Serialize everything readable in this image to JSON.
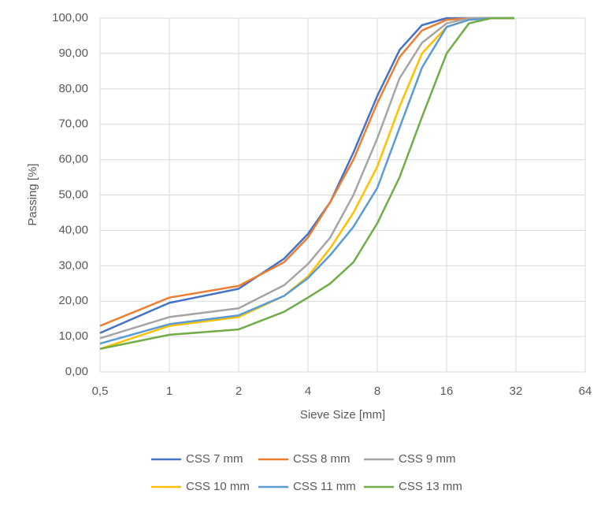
{
  "chart_data": {
    "type": "line",
    "x_label": "Sieve Size [mm]",
    "y_label": "Passing [%]",
    "x_scale": "log2",
    "grid": true,
    "legend": "bottom",
    "x": [
      0.5,
      1,
      2,
      3.15,
      4,
      5,
      6.3,
      8,
      10,
      12.5,
      16,
      20,
      25,
      31.5
    ],
    "xlim": [
      0.5,
      64
    ],
    "xticks": [
      {
        "value": 0.5,
        "label": "0,5"
      },
      1,
      2,
      4,
      8,
      16,
      32,
      64
    ],
    "ylim": [
      0,
      100
    ],
    "yticks": [
      {
        "value": 0,
        "label": "0,00"
      },
      {
        "value": 10,
        "label": "10,00"
      },
      {
        "value": 20,
        "label": "20,00"
      },
      {
        "value": 30,
        "label": "30,00"
      },
      {
        "value": 40,
        "label": "40,00"
      },
      {
        "value": 50,
        "label": "50,00"
      },
      {
        "value": 60,
        "label": "60,00"
      },
      {
        "value": 70,
        "label": "70,00"
      },
      {
        "value": 80,
        "label": "80,00"
      },
      {
        "value": 90,
        "label": "90,00"
      },
      {
        "value": 100,
        "label": "100,00"
      }
    ],
    "series": [
      {
        "name": "CSS 7 mm",
        "color": "#4472c4",
        "values": [
          11,
          19.5,
          23.5,
          32,
          39,
          48,
          62,
          78,
          91,
          98,
          100,
          100,
          100,
          100
        ]
      },
      {
        "name": "CSS 8 mm",
        "color": "#ed7d31",
        "values": [
          13,
          21,
          24.3,
          31,
          38,
          48,
          60,
          76,
          89,
          96.5,
          99.5,
          100,
          100,
          100
        ]
      },
      {
        "name": "CSS 9 mm",
        "color": "#a5a5a5",
        "values": [
          9.5,
          15.5,
          18,
          24.5,
          30.5,
          38,
          50,
          66,
          83,
          93,
          98.5,
          100,
          100,
          100
        ]
      },
      {
        "name": "CSS 10 mm",
        "color": "#ffc000",
        "values": [
          6.5,
          13,
          15.5,
          21.5,
          27,
          35,
          45,
          58,
          75,
          90,
          97.5,
          99.5,
          100,
          100
        ]
      },
      {
        "name": "CSS 11 mm",
        "color": "#5b9bd5",
        "values": [
          8,
          13.5,
          16,
          21.5,
          26.5,
          33,
          41,
          52,
          69,
          86,
          97.5,
          99.5,
          100,
          100
        ]
      },
      {
        "name": "CSS 13 mm",
        "color": "#70ad47",
        "values": [
          6.5,
          10.5,
          12,
          17,
          21,
          25,
          31,
          42,
          55,
          72,
          90,
          98.5,
          100,
          100
        ]
      }
    ]
  }
}
